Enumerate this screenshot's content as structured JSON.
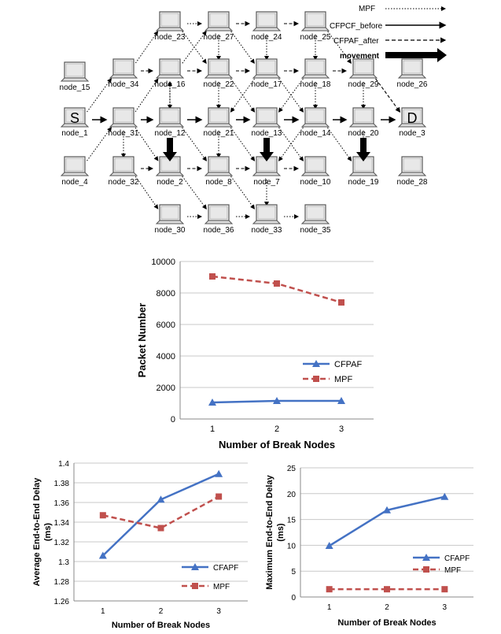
{
  "topology": {
    "legend": {
      "mpf": "MPF",
      "cfpcf_before": "CFPCF_before",
      "cfpaf_after": "CFPAF_after",
      "movement": "movement"
    },
    "source_letter": "S",
    "dest_letter": "D",
    "nodes": {
      "n23": "node_23",
      "n27": "node_27",
      "n24": "node_24",
      "n25": "node_25",
      "n15": "node_15",
      "n34": "node_34",
      "n16": "node_16",
      "n22": "node_22",
      "n17": "node_17",
      "n18": "node_18",
      "n29": "node_29",
      "n26": "node_26",
      "n1": "node_1",
      "n31": "node_31",
      "n12": "node_12",
      "n21": "node_21",
      "n13": "node_13",
      "n14": "node_14",
      "n20": "node_20",
      "n3": "node_3",
      "n4": "node_4",
      "n32": "node_32",
      "n2": "node_2",
      "n8": "node_8",
      "n7": "node_7",
      "n10": "node_10",
      "n19": "node_19",
      "n28": "node_28",
      "n30": "node_30",
      "n36": "node_36",
      "n33": "node_33",
      "n35": "node_35"
    },
    "colors": {
      "line": "#000000",
      "laptop_body": "#ffffff",
      "laptop_edge": "#555555"
    }
  },
  "chart_data": [
    {
      "type": "line",
      "categories": [
        "1",
        "2",
        "3"
      ],
      "series": [
        {
          "name": "CFPAF",
          "values": [
            1050,
            1150,
            1150
          ],
          "color": "#4472c4",
          "marker": "triangle",
          "dash": false
        },
        {
          "name": "MPF",
          "values": [
            9050,
            8600,
            7400
          ],
          "color": "#c0504d",
          "marker": "square",
          "dash": true
        }
      ],
      "title": "",
      "xlabel": "Number of Break Nodes",
      "ylabel": "Packet Number",
      "ylim": [
        0,
        10000
      ],
      "yticks": [
        "0",
        "2000",
        "4000",
        "6000",
        "8000",
        "10000"
      ],
      "grid": "horizontal",
      "legend": "right"
    },
    {
      "type": "line",
      "categories": [
        "1",
        "2",
        "3"
      ],
      "series": [
        {
          "name": "CFAPF",
          "values": [
            1.306,
            1.363,
            1.389
          ],
          "color": "#4472c4",
          "marker": "triangle",
          "dash": false
        },
        {
          "name": "MPF",
          "values": [
            1.347,
            1.334,
            1.366
          ],
          "color": "#c0504d",
          "marker": "square",
          "dash": true
        }
      ],
      "title": "",
      "xlabel": "Number of Break Nodes",
      "ylabel": "Average End-to-End Delay (ms)",
      "ylim": [
        1.26,
        1.4
      ],
      "yticks": [
        "1.26",
        "1.28",
        "1.3",
        "1.32",
        "1.34",
        "1.36",
        "1.38",
        "1.4"
      ],
      "grid": "horizontal",
      "legend": "bottom-right"
    },
    {
      "type": "line",
      "categories": [
        "1",
        "2",
        "3"
      ],
      "series": [
        {
          "name": "CFAPF",
          "values": [
            9.9,
            16.8,
            19.4
          ],
          "color": "#4472c4",
          "marker": "triangle",
          "dash": false
        },
        {
          "name": "MPF",
          "values": [
            1.5,
            1.5,
            1.5
          ],
          "color": "#c0504d",
          "marker": "square",
          "dash": true
        }
      ],
      "title": "",
      "xlabel": "Number of Break Nodes",
      "ylabel": "Maximum End-to-End Delay (ms)",
      "ylim": [
        0,
        25
      ],
      "yticks": [
        "0",
        "5",
        "10",
        "15",
        "20",
        "25"
      ],
      "grid": "horizontal",
      "legend": "bottom-right"
    }
  ]
}
